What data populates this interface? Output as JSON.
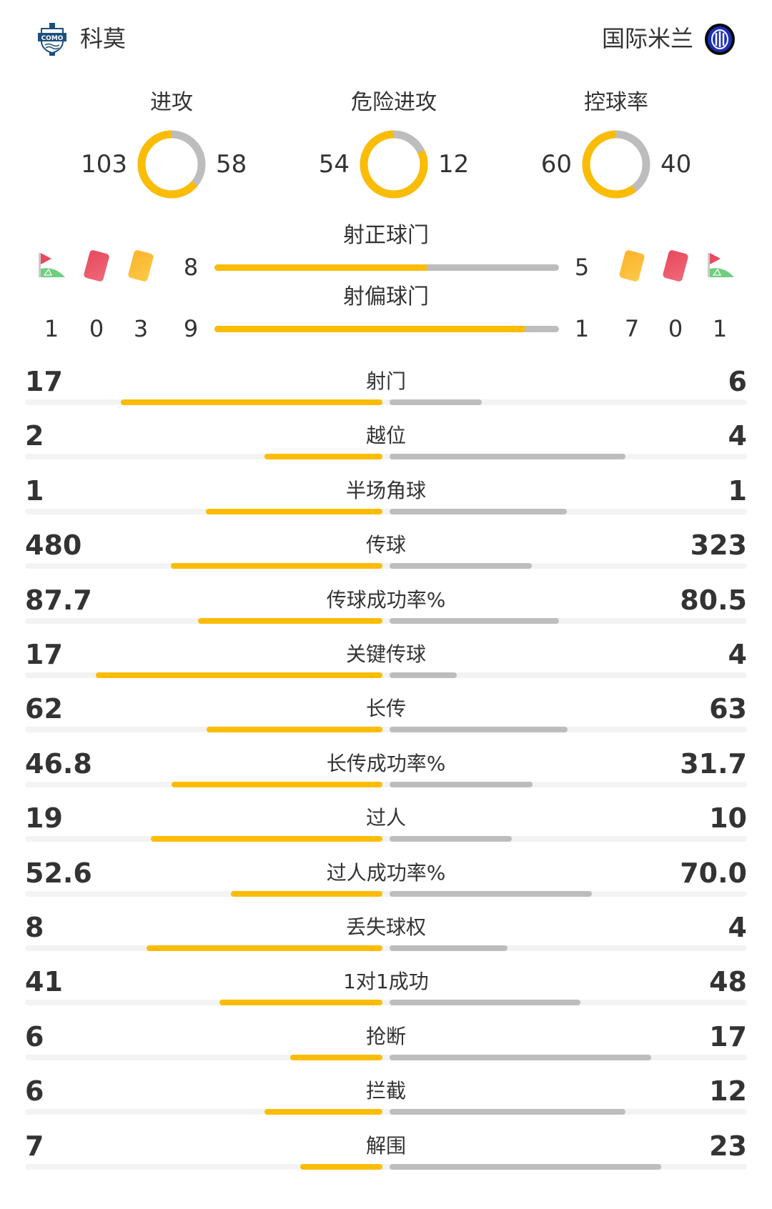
{
  "home": {
    "name": "科莫",
    "logo": "como-crest",
    "logo_text": "COMO 1907"
  },
  "away": {
    "name": "国际米兰",
    "logo": "inter-crest",
    "logo_text": "IM"
  },
  "colors": {
    "home": "#fbbc05",
    "away": "#bdbdbd",
    "track": "#f3f3f3",
    "red_card": "#e84a5f",
    "yellow_card": "#fbbc2c",
    "corner_flag": "#e84a5f",
    "corner_pitch": "#6fcf7f"
  },
  "donuts": [
    {
      "title": "进攻",
      "home": 103,
      "away": 58
    },
    {
      "title": "危险进攻",
      "home": 54,
      "away": 12
    },
    {
      "title": "控球率",
      "home": 60,
      "away": 40
    }
  ],
  "on_target": {
    "title": "射正球门",
    "home": 8,
    "away": 5
  },
  "off_target": {
    "title": "射偏球门",
    "home": 9,
    "away": 1
  },
  "events": {
    "home": {
      "corners": 1,
      "red": 0,
      "yellow": 3
    },
    "away": {
      "corners": 1,
      "red": 0,
      "yellow": 7
    },
    "icons": [
      "corner-flag-icon",
      "red-card-icon",
      "yellow-card-icon"
    ]
  },
  "stats": [
    {
      "label": "射门",
      "home": "17",
      "away": "6"
    },
    {
      "label": "越位",
      "home": "2",
      "away": "4"
    },
    {
      "label": "半场角球",
      "home": "1",
      "away": "1"
    },
    {
      "label": "传球",
      "home": "480",
      "away": "323"
    },
    {
      "label": "传球成功率%",
      "home": "87.7",
      "away": "80.5"
    },
    {
      "label": "关键传球",
      "home": "17",
      "away": "4"
    },
    {
      "label": "长传",
      "home": "62",
      "away": "63"
    },
    {
      "label": "长传成功率%",
      "home": "46.8",
      "away": "31.7"
    },
    {
      "label": "过人",
      "home": "19",
      "away": "10"
    },
    {
      "label": "过人成功率%",
      "home": "52.6",
      "away": "70.0"
    },
    {
      "label": "丢失球权",
      "home": "8",
      "away": "4"
    },
    {
      "label": "1对1成功",
      "home": "41",
      "away": "48"
    },
    {
      "label": "抢断",
      "home": "6",
      "away": "17"
    },
    {
      "label": "拦截",
      "home": "6",
      "away": "12"
    },
    {
      "label": "解围",
      "home": "7",
      "away": "23"
    }
  ]
}
